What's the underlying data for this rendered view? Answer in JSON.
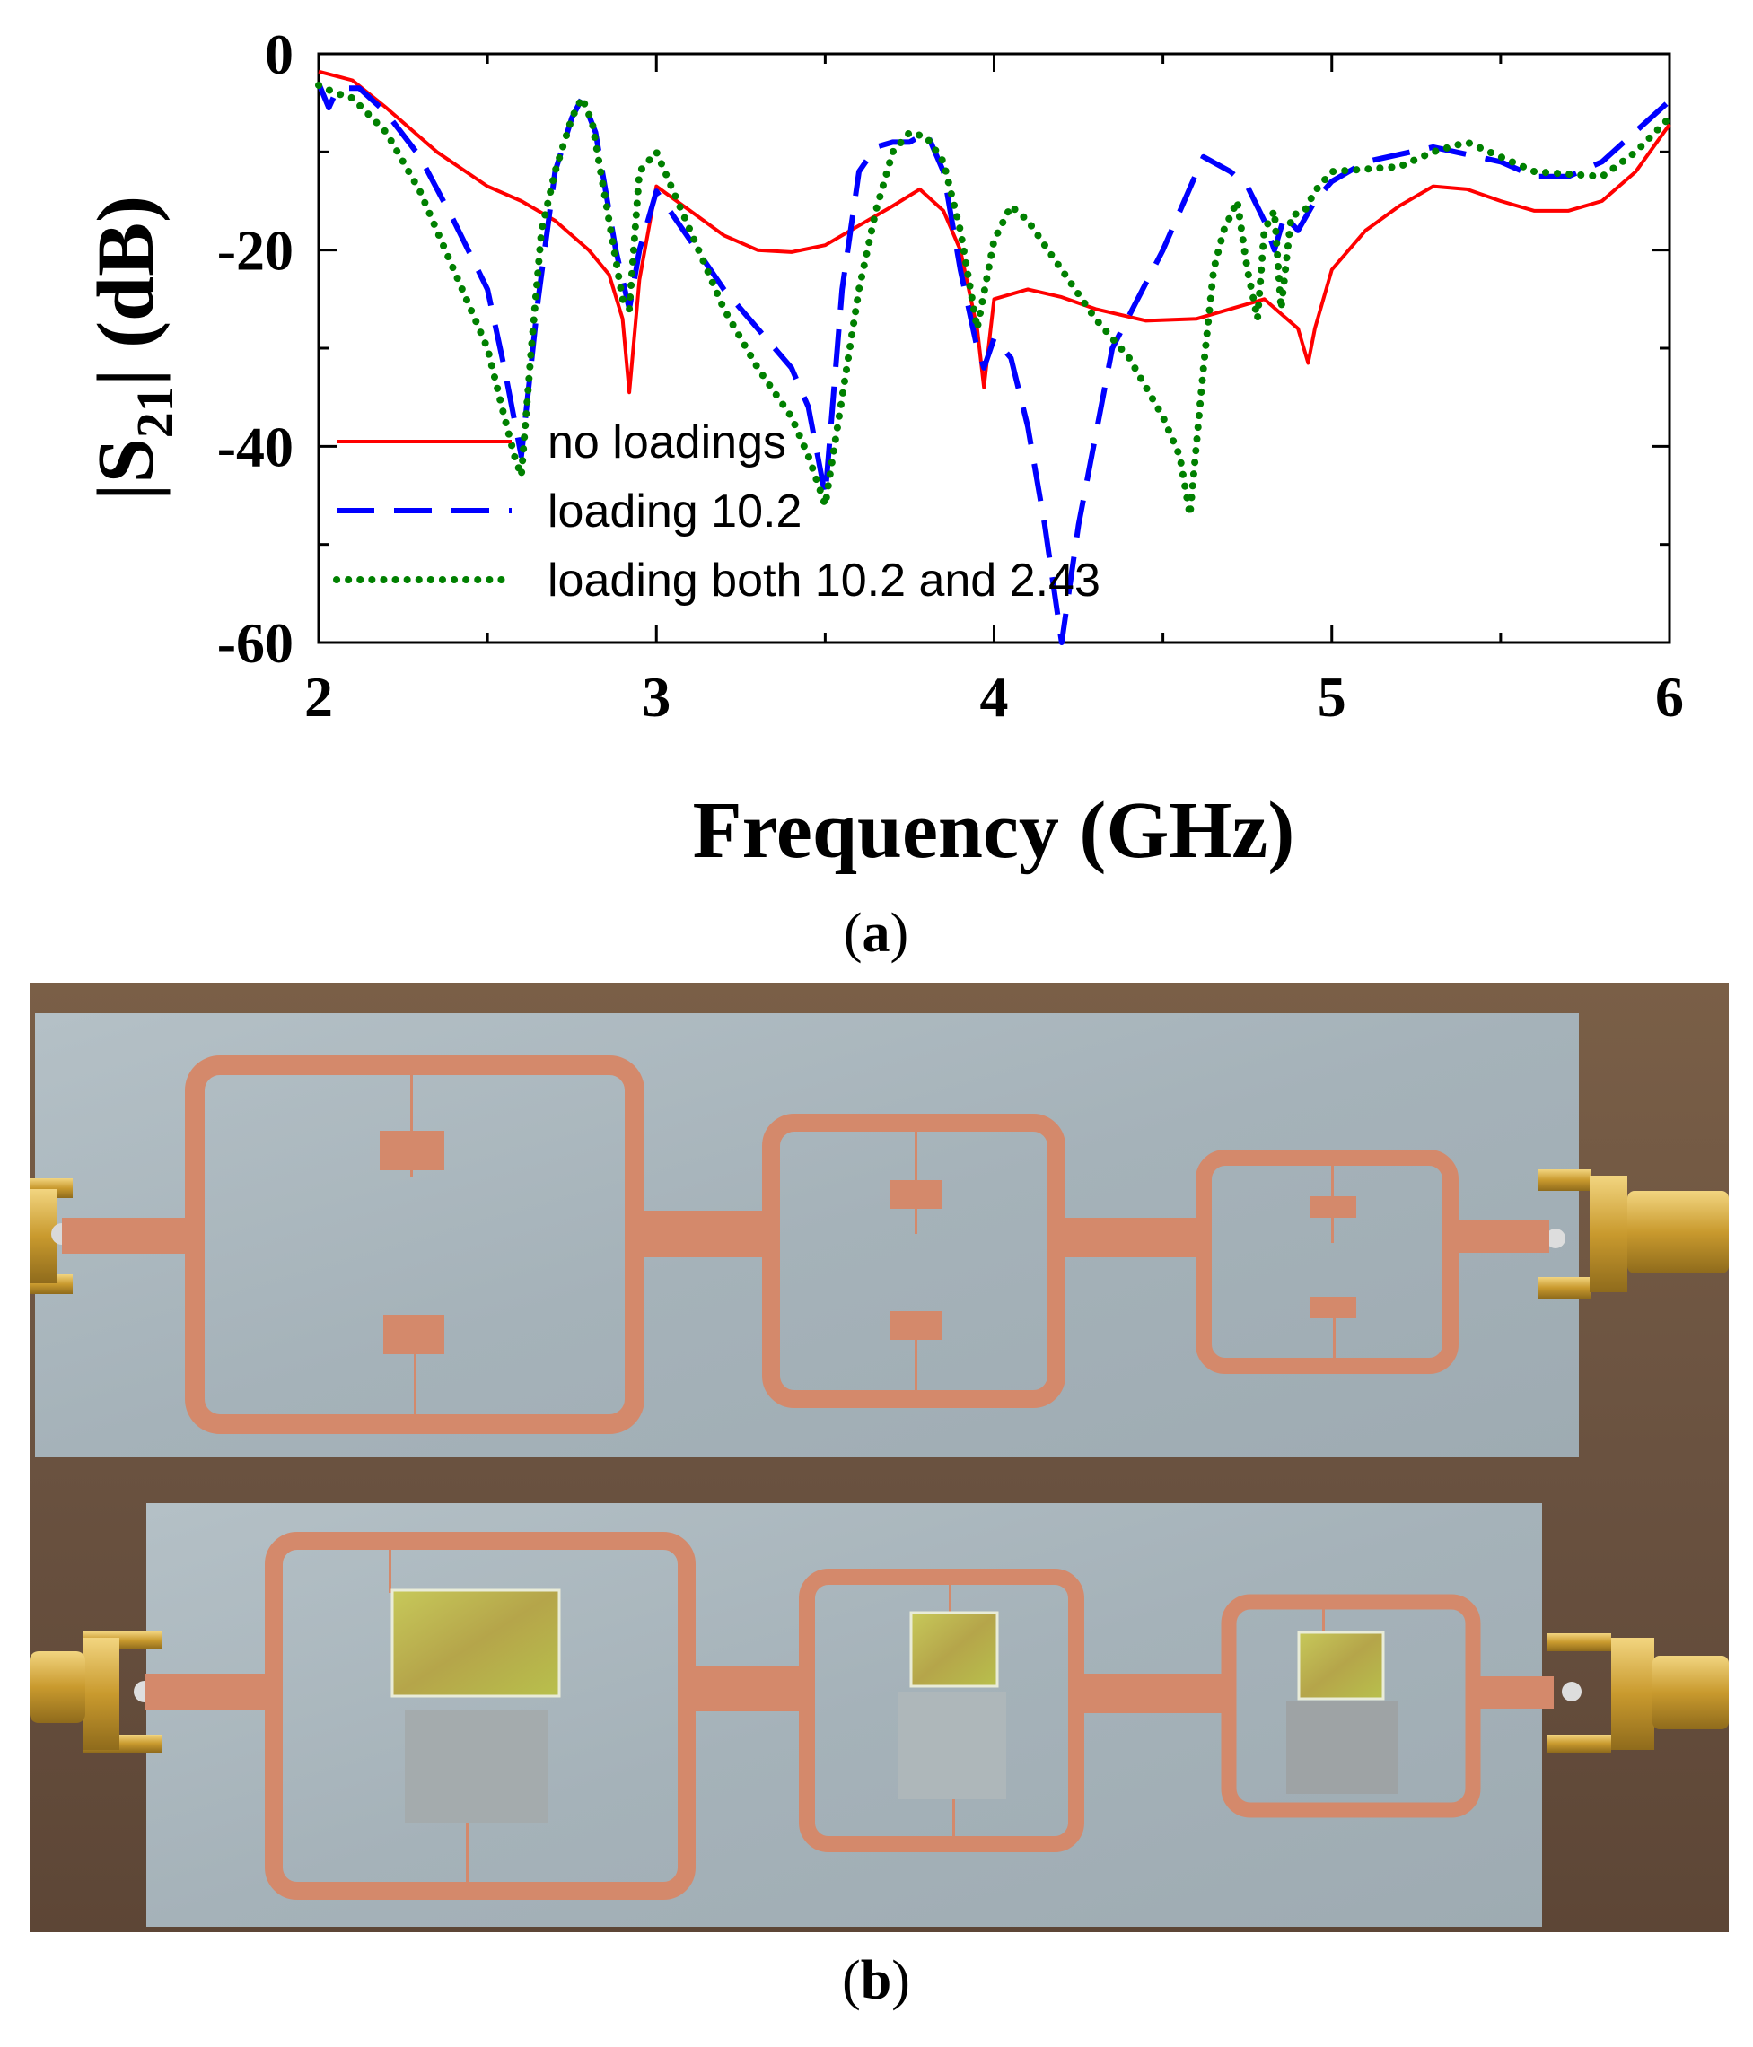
{
  "chart_data": {
    "type": "line",
    "xlabel": "Frequency (GHz)",
    "ylabel_parts": {
      "open": "|S",
      "sub": "21",
      "close": "| (dB)"
    },
    "xlim": [
      2,
      6
    ],
    "ylim": [
      -60,
      0
    ],
    "xticks": [
      2,
      3,
      4,
      5,
      6
    ],
    "xtick_labels": [
      "2",
      "3",
      "4",
      "5",
      "6"
    ],
    "yticks": [
      0,
      -20,
      -40,
      -60
    ],
    "ytick_labels": [
      "0",
      "-20",
      "-40",
      "-60"
    ],
    "grid": false,
    "legend_position": "lower-left",
    "series": [
      {
        "name": "no loadings",
        "color": "#ff0000",
        "style": "solid",
        "x": [
          2.0,
          2.1,
          2.2,
          2.35,
          2.5,
          2.6,
          2.7,
          2.8,
          2.86,
          2.9,
          2.92,
          2.95,
          3.0,
          3.1,
          3.2,
          3.3,
          3.4,
          3.5,
          3.6,
          3.7,
          3.78,
          3.85,
          3.9,
          3.95,
          3.97,
          4.0,
          4.1,
          4.2,
          4.3,
          4.45,
          4.6,
          4.75,
          4.8,
          4.85,
          4.9,
          4.93,
          4.95,
          5.0,
          5.1,
          5.2,
          5.3,
          5.4,
          5.5,
          5.6,
          5.7,
          5.8,
          5.9,
          6.0
        ],
        "y": [
          -1.8,
          -2.7,
          -5.5,
          -10.0,
          -13.5,
          -15.0,
          -17.0,
          -20.0,
          -22.5,
          -27.0,
          -34.5,
          -23.0,
          -13.5,
          -16.0,
          -18.5,
          -20.0,
          -20.2,
          -19.5,
          -17.5,
          -15.5,
          -13.8,
          -16.0,
          -20.0,
          -28.0,
          -34.0,
          -25.0,
          -24.0,
          -24.8,
          -26.0,
          -27.2,
          -27.0,
          -25.5,
          -25.0,
          -26.5,
          -28.0,
          -31.5,
          -28.0,
          -22.0,
          -18.0,
          -15.5,
          -13.5,
          -13.8,
          -15.0,
          -16.0,
          -16.0,
          -15.0,
          -12.0,
          -7.2
        ]
      },
      {
        "name": "loading 10.2",
        "color": "#0000ff",
        "style": "dashed",
        "x": [
          2.0,
          2.03,
          2.05,
          2.08,
          2.12,
          2.2,
          2.3,
          2.4,
          2.5,
          2.55,
          2.6,
          2.65,
          2.7,
          2.75,
          2.78,
          2.82,
          2.88,
          2.92,
          2.95,
          3.0,
          3.1,
          3.2,
          3.3,
          3.4,
          3.45,
          3.5,
          3.55,
          3.6,
          3.65,
          3.7,
          3.75,
          3.8,
          3.85,
          3.9,
          3.95,
          3.97,
          4.0,
          4.05,
          4.1,
          4.15,
          4.2,
          4.25,
          4.35,
          4.5,
          4.62,
          4.7,
          4.75,
          4.8,
          4.83,
          4.86,
          4.9,
          4.95,
          5.0,
          5.1,
          5.3,
          5.5,
          5.6,
          5.7,
          5.8,
          6.0
        ],
        "y": [
          -3.0,
          -5.5,
          -4.0,
          -3.5,
          -3.5,
          -6.0,
          -10.5,
          -17.0,
          -24.0,
          -32.0,
          -41.0,
          -25.0,
          -12.0,
          -6.5,
          -4.5,
          -8.0,
          -20.0,
          -26.0,
          -20.0,
          -14.0,
          -19.0,
          -24.0,
          -28.0,
          -32.0,
          -36.0,
          -45.0,
          -24.0,
          -12.0,
          -9.5,
          -9.0,
          -9.0,
          -8.0,
          -12.0,
          -22.0,
          -30.0,
          -32.0,
          -29.0,
          -31.0,
          -38.0,
          -48.0,
          -60.0,
          -48.0,
          -30.0,
          -20.0,
          -10.5,
          -12.0,
          -13.5,
          -17.0,
          -20.0,
          -16.5,
          -18.0,
          -15.0,
          -13.0,
          -11.0,
          -9.5,
          -11.0,
          -12.5,
          -12.5,
          -11.0,
          -4.8
        ]
      },
      {
        "name": "loading both 10.2 and 2.43",
        "color": "#008000",
        "style": "dotted",
        "x": [
          2.0,
          2.05,
          2.1,
          2.2,
          2.3,
          2.4,
          2.5,
          2.55,
          2.58,
          2.6,
          2.63,
          2.66,
          2.7,
          2.75,
          2.78,
          2.81,
          2.85,
          2.9,
          2.92,
          2.95,
          3.0,
          3.1,
          3.2,
          3.3,
          3.4,
          3.45,
          3.5,
          3.55,
          3.6,
          3.65,
          3.7,
          3.75,
          3.8,
          3.85,
          3.9,
          3.95,
          4.0,
          4.05,
          4.1,
          4.2,
          4.3,
          4.4,
          4.5,
          4.55,
          4.58,
          4.62,
          4.65,
          4.68,
          4.72,
          4.75,
          4.78,
          4.8,
          4.83,
          4.85,
          4.88,
          4.92,
          4.95,
          5.0,
          5.2,
          5.3,
          5.4,
          5.6,
          5.8,
          5.9,
          6.0
        ],
        "y": [
          -3.2,
          -4.0,
          -4.5,
          -8.0,
          -14.0,
          -22.0,
          -30.0,
          -37.0,
          -41.0,
          -43.0,
          -30.0,
          -18.0,
          -12.0,
          -6.5,
          -4.5,
          -7.0,
          -15.0,
          -25.0,
          -26.0,
          -12.0,
          -10.0,
          -18.0,
          -26.0,
          -32.0,
          -37.0,
          -41.0,
          -46.0,
          -35.0,
          -24.0,
          -16.0,
          -10.0,
          -8.0,
          -8.5,
          -11.0,
          -18.0,
          -28.0,
          -19.0,
          -15.5,
          -17.0,
          -22.0,
          -27.0,
          -31.0,
          -37.0,
          -41.0,
          -47.0,
          -32.0,
          -22.0,
          -18.0,
          -15.0,
          -22.0,
          -27.0,
          -18.0,
          -16.0,
          -26.0,
          -16.5,
          -16.0,
          -14.0,
          -12.0,
          -11.5,
          -10.0,
          -9.0,
          -12.0,
          -12.5,
          -10.0,
          -6.5
        ]
      }
    ]
  },
  "panel_labels": {
    "a": {
      "open": "(",
      "letter": "a",
      "close": ")"
    },
    "b": {
      "open": "(",
      "letter": "b",
      "close": ")"
    }
  },
  "photo": {
    "description_free": true,
    "board_color": "#a9b5bc",
    "copper_color": "#d48a6c",
    "pad_color": "#b9be4a",
    "loading_gray": "#a4abad",
    "connector_gold": "#d9b344"
  }
}
